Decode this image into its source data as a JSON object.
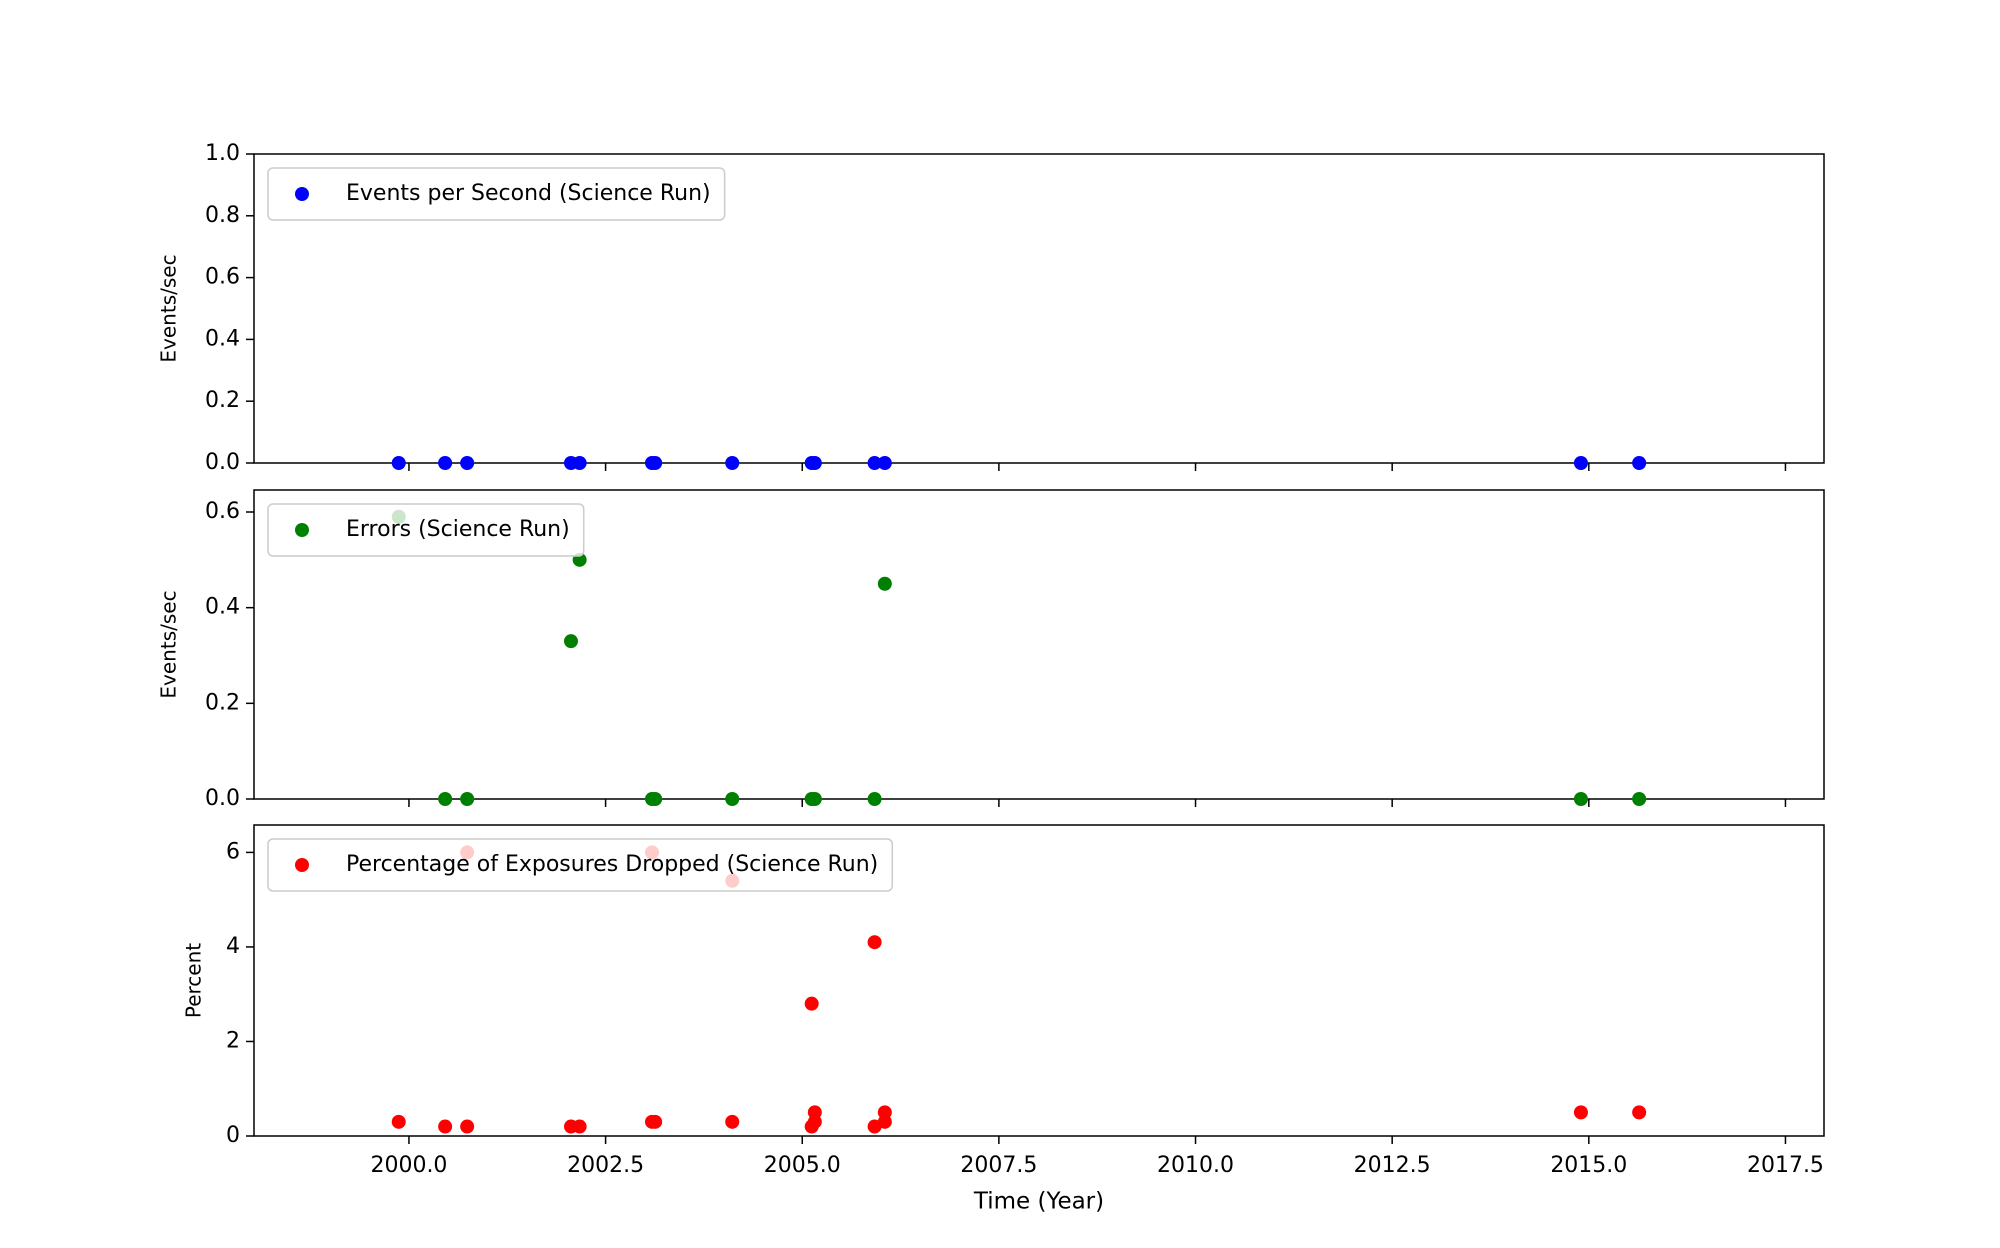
{
  "chart_data": [
    {
      "type": "scatter",
      "ylabel": "Events/sec",
      "legend": "upper left",
      "xlim": [
        1998.03,
        2017.99
      ],
      "ylim": [
        0,
        1
      ],
      "yticks": [
        {
          "value": 0,
          "label": "0.0"
        },
        0.2,
        0.4,
        0.6,
        0.8,
        {
          "value": 1,
          "label": "1.0"
        }
      ],
      "series": [
        {
          "name": "Events per Second (Science Run)",
          "color": "#0000ff",
          "x": [
            1999.87,
            2000.46,
            2000.74,
            2002.06,
            2002.17,
            2003.09,
            2003.13,
            2004.11,
            2005.12,
            2005.16,
            2005.92,
            2006.05,
            2014.9,
            2015.64
          ],
          "values": [
            0,
            0,
            0,
            0,
            0,
            0,
            0,
            0,
            0,
            0,
            0,
            0,
            0,
            0
          ]
        }
      ]
    },
    {
      "type": "scatter",
      "ylabel": "Events/sec",
      "legend": "upper left",
      "xlim": [
        1998.03,
        2017.99
      ],
      "ylim": [
        0,
        0.646
      ],
      "yticks": [
        {
          "value": 0,
          "label": "0.0"
        },
        0.2,
        0.4,
        0.6
      ],
      "series": [
        {
          "name": "Errors (Science Run)",
          "color": "#008000",
          "x": [
            1999.87,
            2000.46,
            2000.74,
            2002.06,
            2002.17,
            2003.09,
            2003.13,
            2004.11,
            2005.12,
            2005.16,
            2005.92,
            2006.05,
            2014.9,
            2015.64
          ],
          "values": [
            0.59,
            0,
            0,
            0.33,
            0.5,
            0,
            0,
            0,
            0,
            0,
            0,
            0.45,
            0,
            0
          ]
        }
      ]
    },
    {
      "type": "scatter",
      "ylabel": "Percent",
      "xlabel": "Time (Year)",
      "legend": "upper left",
      "xlim": [
        1998.03,
        2017.99
      ],
      "ylim": [
        0,
        6.58
      ],
      "yticks": [
        0,
        2,
        4,
        6
      ],
      "xticks": [
        {
          "value": 2000,
          "label": "2000.0"
        },
        2002.5,
        {
          "value": 2005,
          "label": "2005.0"
        },
        2007.5,
        {
          "value": 2010,
          "label": "2010.0"
        },
        2012.5,
        {
          "value": 2015,
          "label": "2015.0"
        },
        2017.5
      ],
      "series": [
        {
          "name": "Percentage of Exposures Dropped (Science Run)",
          "color": "#ff0000",
          "x": [
            1999.87,
            2000.46,
            2000.74,
            2000.74,
            2002.06,
            2002.17,
            2003.09,
            2003.09,
            2003.13,
            2004.11,
            2004.11,
            2005.12,
            2005.12,
            2005.16,
            2005.16,
            2005.92,
            2005.92,
            2006.05,
            2006.05,
            2014.9,
            2015.64
          ],
          "values": [
            0.3,
            0.2,
            6.0,
            0.2,
            0.2,
            0.2,
            6.0,
            0.3,
            0.3,
            5.4,
            0.3,
            2.8,
            0.2,
            0.5,
            0.3,
            4.1,
            0.2,
            0.5,
            0.3,
            0.5,
            0.5
          ]
        }
      ]
    }
  ]
}
